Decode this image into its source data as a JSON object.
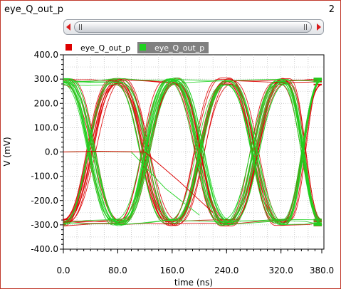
{
  "window": {
    "title": "eye_Q_out_p",
    "number": "2"
  },
  "colors": {
    "series1": "#dd0000",
    "series2": "#1fd11f",
    "frame": "#c0392b",
    "grid": "#b9b9b9"
  },
  "chart_data": {
    "type": "line",
    "subtype": "eye-diagram",
    "title": "",
    "xlabel": "time (ns)",
    "ylabel": "V (mV)",
    "xlim": [
      0.0,
      380.0
    ],
    "ylim": [
      -400.0,
      400.0
    ],
    "xticks": [
      "0.0",
      "80.0",
      "160.0",
      "240.0",
      "320.0",
      "380.0"
    ],
    "yticks": [
      "400.0",
      "300.0",
      "200.0",
      "100.0",
      "0.0",
      "-100.0",
      "-200.0",
      "-300.0",
      "-400.0"
    ],
    "grid": true,
    "legend_position": "top-left",
    "unit_interval_ns": 80,
    "levels_mV": {
      "high": [
        240,
        345
      ],
      "low": [
        -345,
        -240
      ]
    },
    "crossings_ns": [
      40,
      120,
      200,
      280,
      360
    ],
    "series": [
      {
        "name": "eye_Q_out_p",
        "color": "#dd0000",
        "x": [
          0,
          40,
          80,
          120,
          160,
          200,
          240,
          280,
          320,
          360
        ],
        "y": [
          -290,
          0,
          300,
          0,
          -300,
          0,
          300,
          0,
          -300,
          0
        ]
      },
      {
        "name": "eye_Q_out_p",
        "color": "#1fd11f",
        "x": [
          0,
          40,
          80,
          120,
          160,
          200,
          240,
          280,
          320,
          360
        ],
        "y": [
          300,
          0,
          -300,
          0,
          300,
          0,
          -300,
          0,
          300,
          0
        ]
      }
    ],
    "settling_trace": {
      "x": [
        0,
        50,
        100,
        150,
        200
      ],
      "y": [
        0,
        2,
        0,
        -150,
        -260
      ]
    }
  }
}
